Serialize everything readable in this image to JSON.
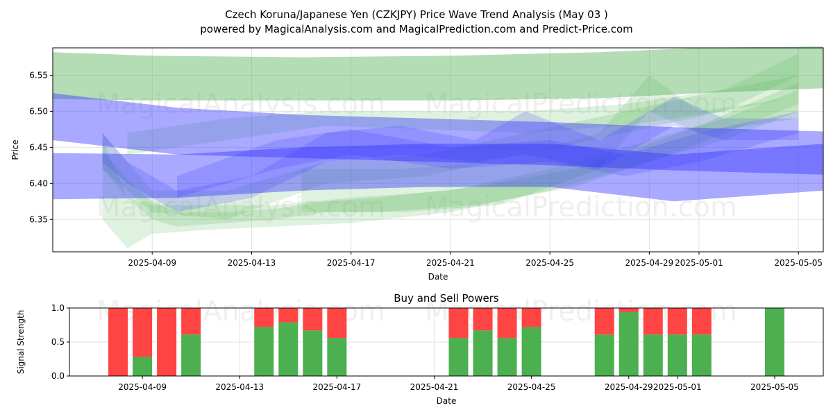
{
  "header": {
    "title": "Czech Koruna/Japanese Yen (CZKJPY) Price Wave Trend Analysis (May 03 )",
    "subtitle": "powered by MagicalAnalysis.com and MagicalPrediction.com and Predict-Price.com"
  },
  "watermarks": [
    "MagicalAnalysis.com",
    "MagicalPrediction.com"
  ],
  "colors": {
    "green_band": "#4caf50",
    "blue_band": "#3333ff",
    "buy": "#4caf50",
    "sell": "#ff4444"
  },
  "chart_data": [
    {
      "type": "area",
      "title": "",
      "xlabel": "Date",
      "ylabel": "Price",
      "x_range": [
        "2025-04-05",
        "2025-05-06"
      ],
      "ylim": [
        6.305,
        6.588
      ],
      "x_ticks": [
        "2025-04-09",
        "2025-04-13",
        "2025-04-17",
        "2025-04-21",
        "2025-04-25",
        "2025-04-29",
        "2025-05-01",
        "2025-05-05"
      ],
      "y_ticks": [
        "6.35",
        "6.40",
        "6.45",
        "6.50",
        "6.55"
      ],
      "grid": true,
      "series": [
        {
          "color": "green",
          "bands": [
            {
              "x": [
                "2025-04-05",
                "2025-04-09",
                "2025-04-15",
                "2025-04-21",
                "2025-04-27",
                "2025-05-01",
                "2025-05-06"
              ],
              "low": [
                6.517,
                6.515,
                6.515,
                6.515,
                6.518,
                6.525,
                6.532
              ],
              "high": [
                6.582,
                6.577,
                6.575,
                6.577,
                6.582,
                6.588,
                6.59
              ]
            },
            {
              "x": [
                "2025-04-07",
                "2025-04-08",
                "2025-04-09",
                "2025-04-10",
                "2025-04-12",
                "2025-04-14",
                "2025-04-16",
                "2025-04-18",
                "2025-04-22",
                "2025-04-26",
                "2025-04-29",
                "2025-05-01",
                "2025-05-05"
              ],
              "low": [
                6.42,
                6.38,
                6.35,
                6.34,
                6.345,
                6.35,
                6.36,
                6.36,
                6.37,
                6.395,
                6.43,
                6.455,
                6.51
              ],
              "high": [
                6.445,
                6.405,
                6.375,
                6.36,
                6.36,
                6.365,
                6.375,
                6.38,
                6.395,
                6.42,
                6.455,
                6.48,
                6.54
              ]
            },
            {
              "x": [
                "2025-04-07",
                "2025-04-08",
                "2025-04-09",
                "2025-04-11",
                "2025-04-14",
                "2025-04-17",
                "2025-04-21",
                "2025-04-25",
                "2025-04-29",
                "2025-05-02",
                "2025-05-05"
              ],
              "low": [
                6.35,
                6.31,
                6.33,
                6.335,
                6.34,
                6.345,
                6.36,
                6.39,
                6.43,
                6.46,
                6.5
              ],
              "high": [
                6.46,
                6.38,
                6.37,
                6.37,
                6.37,
                6.38,
                6.39,
                6.42,
                6.46,
                6.49,
                6.53
              ]
            },
            {
              "x": [
                "2025-04-07",
                "2025-04-09",
                "2025-04-12",
                "2025-04-16",
                "2025-04-20",
                "2025-04-24",
                "2025-04-28",
                "2025-05-02",
                "2025-05-05"
              ],
              "low": [
                6.42,
                6.36,
                6.35,
                6.4,
                6.41,
                6.44,
                6.47,
                6.5,
                6.55
              ],
              "high": [
                6.47,
                6.39,
                6.39,
                6.43,
                6.44,
                6.47,
                6.5,
                6.53,
                6.58
              ]
            },
            {
              "x": [
                "2025-04-08",
                "2025-04-12",
                "2025-04-16",
                "2025-04-20",
                "2025-04-24",
                "2025-04-28",
                "2025-05-02",
                "2025-05-05"
              ],
              "low": [
                6.44,
                6.46,
                6.48,
                6.475,
                6.47,
                6.48,
                6.5,
                6.52
              ],
              "high": [
                6.47,
                6.49,
                6.5,
                6.5,
                6.5,
                6.51,
                6.53,
                6.55
              ]
            },
            {
              "x": [
                "2025-04-15",
                "2025-04-19",
                "2025-04-23",
                "2025-04-27",
                "2025-04-29",
                "2025-05-01",
                "2025-05-05"
              ],
              "low": [
                6.36,
                6.36,
                6.37,
                6.42,
                6.5,
                6.47,
                6.49
              ],
              "high": [
                6.42,
                6.42,
                6.43,
                6.47,
                6.55,
                6.5,
                6.52
              ]
            }
          ]
        },
        {
          "color": "blue",
          "bands": [
            {
              "x": [
                "2025-04-05",
                "2025-04-10",
                "2025-04-15",
                "2025-04-20",
                "2025-04-25",
                "2025-04-30",
                "2025-05-06"
              ],
              "low": [
                6.46,
                6.44,
                6.435,
                6.43,
                6.425,
                6.418,
                6.412
              ],
              "high": [
                6.525,
                6.505,
                6.495,
                6.49,
                6.485,
                6.478,
                6.472
              ]
            },
            {
              "x": [
                "2025-04-05",
                "2025-04-10",
                "2025-04-15",
                "2025-04-20",
                "2025-04-25",
                "2025-04-30",
                "2025-05-06"
              ],
              "low": [
                6.378,
                6.38,
                6.39,
                6.395,
                6.395,
                6.375,
                6.39
              ],
              "high": [
                6.442,
                6.44,
                6.45,
                6.455,
                6.455,
                6.44,
                6.455
              ]
            },
            {
              "x": [
                "2025-04-07",
                "2025-04-08",
                "2025-04-10",
                "2025-04-13",
                "2025-04-16",
                "2025-04-19",
                "2025-04-22",
                "2025-04-24",
                "2025-04-27",
                "2025-04-30",
                "2025-05-02",
                "2025-05-05"
              ],
              "low": [
                6.43,
                6.4,
                6.36,
                6.38,
                6.43,
                6.44,
                6.43,
                6.44,
                6.42,
                6.48,
                6.46,
                6.46
              ],
              "high": [
                6.47,
                6.43,
                6.39,
                6.41,
                6.47,
                6.48,
                6.46,
                6.5,
                6.46,
                6.52,
                6.49,
                6.49
              ]
            },
            {
              "x": [
                "2025-04-10",
                "2025-04-14",
                "2025-04-17",
                "2025-04-21",
                "2025-04-25",
                "2025-04-28",
                "2025-05-01",
                "2025-05-05"
              ],
              "low": [
                6.38,
                6.42,
                6.44,
                6.42,
                6.43,
                6.41,
                6.43,
                6.47
              ],
              "high": [
                6.41,
                6.46,
                6.475,
                6.45,
                6.46,
                6.44,
                6.47,
                6.5
              ]
            }
          ]
        }
      ]
    },
    {
      "type": "bar",
      "title": "Buy and Sell Powers",
      "xlabel": "Date",
      "ylabel": "Signal Strength",
      "ylim": [
        0,
        1
      ],
      "y_ticks": [
        "0.0",
        "0.5",
        "1.0"
      ],
      "x_ticks": [
        "2025-04-09",
        "2025-04-13",
        "2025-04-17",
        "2025-04-21",
        "2025-04-25",
        "2025-04-29",
        "2025-05-01",
        "2025-05-05"
      ],
      "grid": true,
      "categories": [
        "2025-04-08",
        "2025-04-09",
        "2025-04-10",
        "2025-04-11",
        "2025-04-14",
        "2025-04-15",
        "2025-04-16",
        "2025-04-17",
        "2025-04-22",
        "2025-04-23",
        "2025-04-24",
        "2025-04-25",
        "2025-04-28",
        "2025-04-29",
        "2025-04-30",
        "2025-05-01",
        "2025-05-02",
        "2025-05-05"
      ],
      "series": [
        {
          "name": "Buy",
          "values": [
            0.0,
            0.28,
            0.0,
            0.61,
            0.72,
            0.79,
            0.67,
            0.56,
            0.56,
            0.67,
            0.56,
            0.72,
            0.61,
            0.94,
            0.61,
            0.61,
            0.61,
            1.0
          ]
        },
        {
          "name": "Sell",
          "values": [
            1.0,
            0.72,
            1.0,
            0.39,
            0.28,
            0.21,
            0.33,
            0.44,
            0.44,
            0.33,
            0.44,
            0.28,
            0.39,
            0.06,
            0.39,
            0.39,
            0.39,
            0.0
          ]
        }
      ]
    }
  ]
}
